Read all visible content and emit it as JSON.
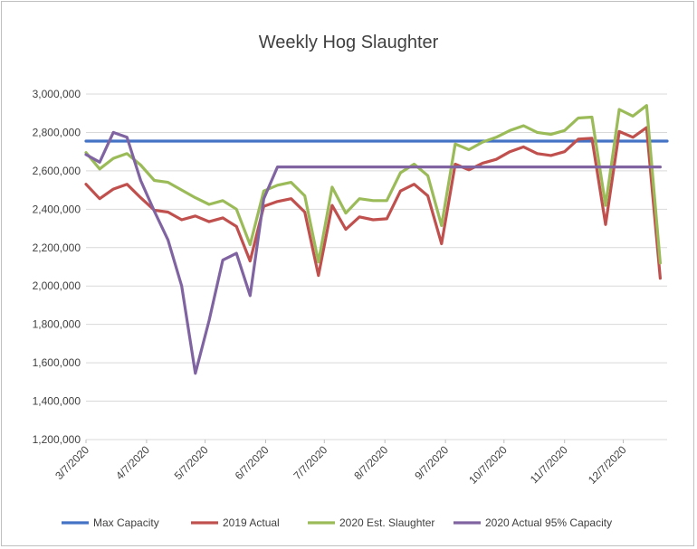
{
  "chart_data": {
    "type": "line",
    "title": "Weekly Hog Slaughter",
    "xlabel": "",
    "ylabel": "",
    "ylim": [
      1200000,
      3000000
    ],
    "y_ticks": [
      1200000,
      1400000,
      1600000,
      1800000,
      2000000,
      2200000,
      2400000,
      2600000,
      2800000,
      3000000
    ],
    "y_tick_labels": [
      "1,200,000",
      "1,400,000",
      "1,600,000",
      "1,800,000",
      "2,000,000",
      "2,200,000",
      "2,400,000",
      "2,600,000",
      "2,800,000",
      "3,000,000"
    ],
    "x_tick_labels": [
      "3/7/2020",
      "4/7/2020",
      "5/7/2020",
      "6/7/2020",
      "7/7/2020",
      "8/7/2020",
      "9/7/2020",
      "10/7/2020",
      "11/7/2020",
      "12/7/2020"
    ],
    "x_tick_weeks": [
      0,
      4.43,
      8.71,
      13.14,
      17.43,
      21.86,
      26.29,
      30.57,
      35.0,
      39.29
    ],
    "x_range_weeks": [
      0,
      42.5
    ],
    "grid": true,
    "legend_position": "bottom",
    "series": [
      {
        "name": "Max Capacity",
        "color": "#4472c4",
        "values": [
          2755000,
          2755000
        ]
      },
      {
        "name": "2019 Actual",
        "color": "#c0504d",
        "values": [
          2530000,
          2455000,
          2505000,
          2530000,
          2460000,
          2395000,
          2385000,
          2345000,
          2365000,
          2335000,
          2355000,
          2310000,
          2130000,
          2415000,
          2440000,
          2455000,
          2385000,
          2055000,
          2420000,
          2295000,
          2360000,
          2345000,
          2350000,
          2495000,
          2530000,
          2470000,
          2220000,
          2635000,
          2605000,
          2640000,
          2660000,
          2700000,
          2725000,
          2690000,
          2680000,
          2700000,
          2765000,
          2770000,
          2320000,
          2805000,
          2775000,
          2825000,
          2040000
        ]
      },
      {
        "name": "2020 Est. Slaughter",
        "color": "#9bbb59",
        "values": [
          2695000,
          2610000,
          2665000,
          2690000,
          2630000,
          2550000,
          2540000,
          2500000,
          2460000,
          2425000,
          2445000,
          2400000,
          2215000,
          2495000,
          2525000,
          2540000,
          2470000,
          2125000,
          2515000,
          2380000,
          2455000,
          2445000,
          2445000,
          2590000,
          2635000,
          2575000,
          2315000,
          2740000,
          2710000,
          2750000,
          2775000,
          2810000,
          2835000,
          2800000,
          2790000,
          2810000,
          2875000,
          2880000,
          2420000,
          2920000,
          2885000,
          2940000,
          2120000
        ]
      },
      {
        "name": "2020 Actual 95% Capacity",
        "color": "#8064a2",
        "values": [
          2685000,
          2645000,
          2800000,
          2775000,
          2550000,
          2390000,
          2240000,
          2000000,
          1545000,
          1820000,
          2135000,
          2170000,
          1950000,
          2455000,
          2620000,
          2620000,
          2620000,
          2620000,
          2620000,
          2620000,
          2620000,
          2620000,
          2620000,
          2620000,
          2620000,
          2620000,
          2620000,
          2620000,
          2620000,
          2620000,
          2620000,
          2620000,
          2620000,
          2620000,
          2620000,
          2620000,
          2620000,
          2620000,
          2620000,
          2620000,
          2620000,
          2620000,
          2620000
        ]
      }
    ]
  }
}
